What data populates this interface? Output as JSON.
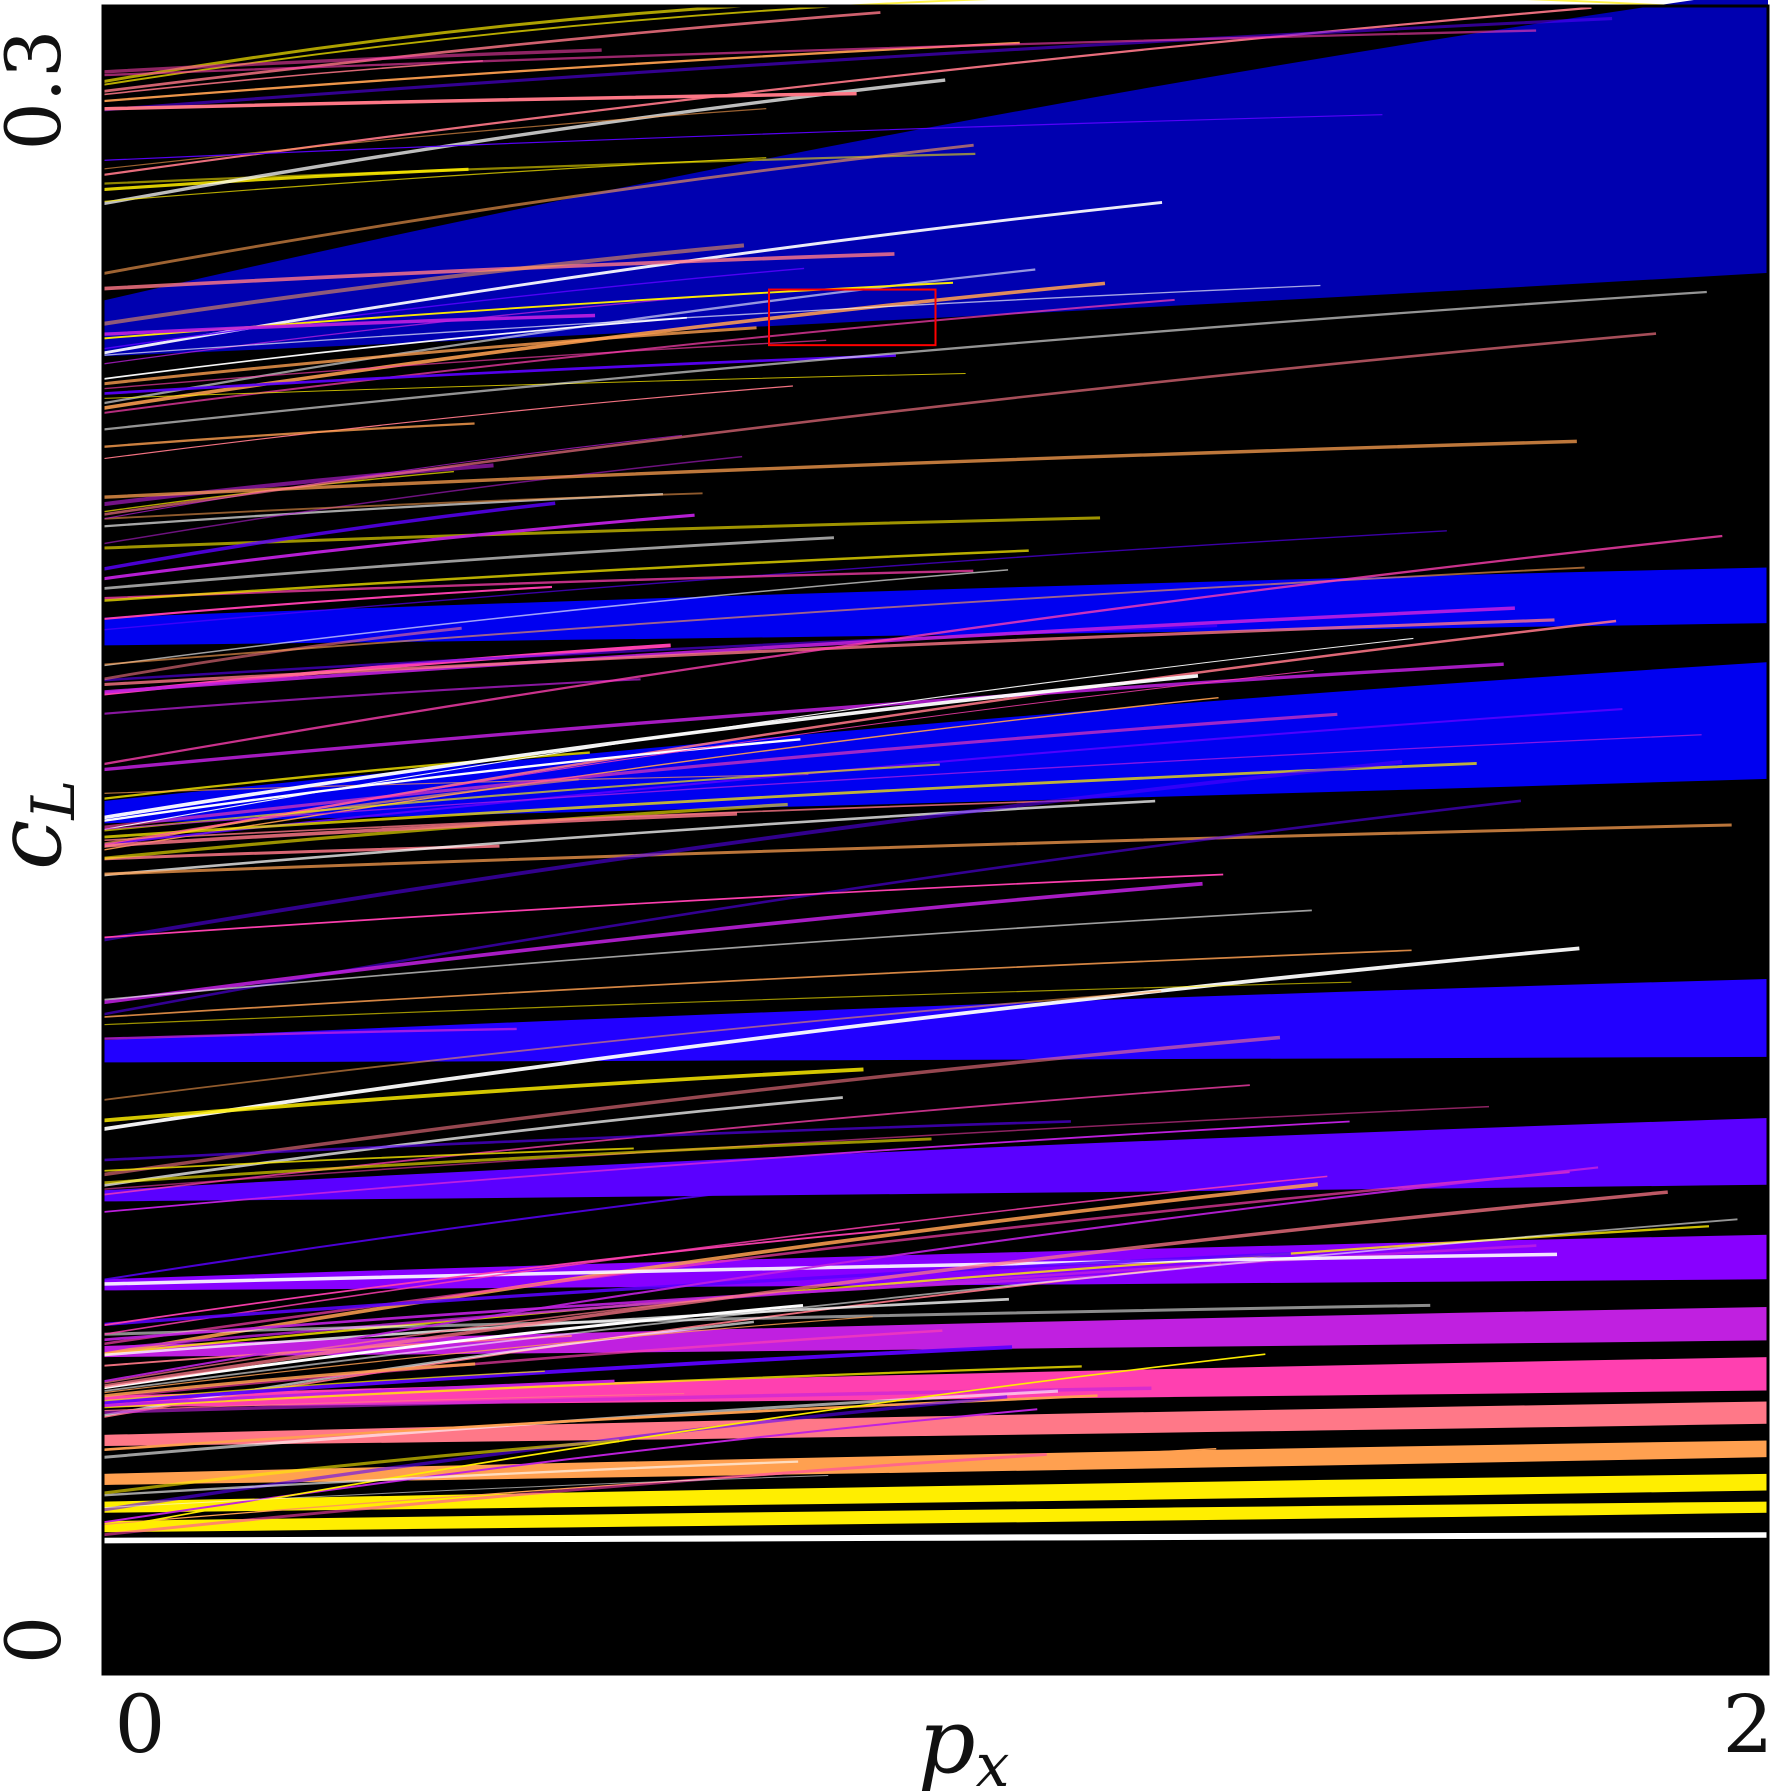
{
  "chart_data": {
    "type": "heatmap",
    "title": "",
    "xlabel": {
      "base": "p",
      "sub": "x"
    },
    "ylabel": {
      "base": "c",
      "sub": "L"
    },
    "xlim": [
      0,
      2
    ],
    "ylim": [
      0,
      0.3
    ],
    "x_ticks": [
      "0",
      "2"
    ],
    "y_ticks": [
      "0",
      "0.3"
    ],
    "grid": false,
    "legend": "none",
    "background_color": "#000000",
    "colors": {
      "dark_blue": "#0000b0",
      "blue": "#0000f0",
      "indigo": "#2200ff",
      "violet": "#5a00ff",
      "purple": "#8800ff",
      "magenta": "#c020e0",
      "pink": "#ff40b0",
      "salmon": "#ff7888",
      "orange": "#ffa050",
      "yellow": "#ffee00",
      "white": "#ffffff",
      "highlight_box": "#ff0000"
    },
    "bands": [
      {
        "color": "dark_blue",
        "y_left_top": 0.247,
        "y_left_bottom": 0.237,
        "y_right_top": 0.303,
        "y_right_bottom": 0.252
      },
      {
        "color": "blue",
        "y_left_top": 0.19,
        "y_left_bottom": 0.185,
        "y_right_top": 0.199,
        "y_right_bottom": 0.189
      },
      {
        "color": "blue",
        "y_left_top": 0.157,
        "y_left_bottom": 0.153,
        "y_right_top": 0.182,
        "y_right_bottom": 0.161
      },
      {
        "color": "indigo",
        "y_left_top": 0.114,
        "y_left_bottom": 0.11,
        "y_right_top": 0.125,
        "y_right_bottom": 0.111
      },
      {
        "color": "violet",
        "y_left_top": 0.087,
        "y_left_bottom": 0.085,
        "y_right_top": 0.1,
        "y_right_bottom": 0.088
      },
      {
        "color": "purple",
        "y_left_top": 0.071,
        "y_left_bottom": 0.069,
        "y_right_top": 0.079,
        "y_right_bottom": 0.071
      },
      {
        "color": "magenta",
        "y_left_top": 0.059,
        "y_left_bottom": 0.057,
        "y_right_top": 0.066,
        "y_right_bottom": 0.06
      },
      {
        "color": "pink",
        "y_left_top": 0.05,
        "y_left_bottom": 0.048,
        "y_right_top": 0.057,
        "y_right_bottom": 0.051
      },
      {
        "color": "salmon",
        "y_left_top": 0.043,
        "y_left_bottom": 0.041,
        "y_right_top": 0.049,
        "y_right_bottom": 0.045
      },
      {
        "color": "orange",
        "y_left_top": 0.036,
        "y_left_bottom": 0.034,
        "y_right_top": 0.042,
        "y_right_bottom": 0.039
      },
      {
        "color": "yellow",
        "y_left_top": 0.031,
        "y_left_bottom": 0.029,
        "y_right_top": 0.036,
        "y_right_bottom": 0.033
      },
      {
        "color": "yellow",
        "y_left_top": 0.0275,
        "y_left_bottom": 0.0255,
        "y_right_top": 0.031,
        "y_right_bottom": 0.029
      },
      {
        "color": "white",
        "y_left_top": 0.0245,
        "y_left_bottom": 0.0235,
        "y_right_top": 0.0255,
        "y_right_bottom": 0.0245
      }
    ],
    "highlight_box": {
      "x": [
        0.8,
        1.0
      ],
      "y": [
        0.239,
        0.249
      ]
    }
  }
}
